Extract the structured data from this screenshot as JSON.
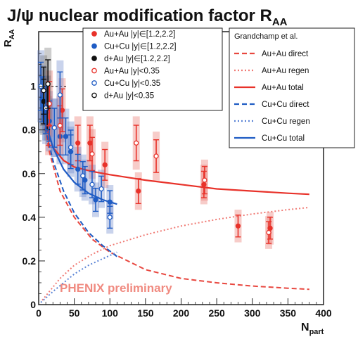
{
  "chart_data": {
    "type": "scatter",
    "title": "J/ψ nuclear modification factor R",
    "title_sub": "AA",
    "ylabel": "R",
    "ylabel_sub": "AA",
    "xlabel": "N",
    "xlabel_sub": "part",
    "xlim": [
      0,
      400
    ],
    "ylim": [
      0,
      1.25
    ],
    "xticks": [
      "0",
      "50",
      "100",
      "150",
      "200",
      "250",
      "300",
      "350",
      "400"
    ],
    "yticks": [
      "0",
      "0.2",
      "0.4",
      "0.6",
      "0.8",
      "1"
    ],
    "watermark": "PHENIX preliminary",
    "legend_position": "top-center",
    "data_series": [
      {
        "name": "Au+Au |y|∈[1.2,2.2]",
        "color": "#e8322a",
        "marker": "filled-circle",
        "points": [
          {
            "x": 14,
            "y": 0.82
          },
          {
            "x": 33,
            "y": 0.89
          },
          {
            "x": 55,
            "y": 0.74
          },
          {
            "x": 72,
            "y": 0.74
          },
          {
            "x": 93,
            "y": 0.64
          },
          {
            "x": 140,
            "y": 0.52
          },
          {
            "x": 232,
            "y": 0.55
          },
          {
            "x": 280,
            "y": 0.36
          },
          {
            "x": 325,
            "y": 0.35
          }
        ]
      },
      {
        "name": "Cu+Cu |y|∈[1.2,2.2]",
        "color": "#1f5cc4",
        "marker": "filled-circle",
        "points": [
          {
            "x": 5,
            "y": 0.94
          },
          {
            "x": 10,
            "y": 0.88
          },
          {
            "x": 15,
            "y": 0.84
          },
          {
            "x": 22,
            "y": 0.81
          },
          {
            "x": 30,
            "y": 0.77
          },
          {
            "x": 38,
            "y": 0.77
          },
          {
            "x": 45,
            "y": 0.7
          },
          {
            "x": 55,
            "y": 0.62
          },
          {
            "x": 65,
            "y": 0.57
          },
          {
            "x": 80,
            "y": 0.48
          },
          {
            "x": 100,
            "y": 0.47
          }
        ]
      },
      {
        "name": "d+Au |y|∈[1.2,2.2]",
        "color": "#111111",
        "marker": "filled-circle",
        "points": [
          {
            "x": 7,
            "y": 0.93
          },
          {
            "x": 12,
            "y": 0.9
          }
        ]
      },
      {
        "name": "Au+Au |y|<0.35",
        "color": "#e8322a",
        "marker": "open-circle",
        "points": [
          {
            "x": 15,
            "y": 0.92
          },
          {
            "x": 30,
            "y": 0.82
          },
          {
            "x": 75,
            "y": 0.69
          },
          {
            "x": 137,
            "y": 0.74
          },
          {
            "x": 165,
            "y": 0.68
          },
          {
            "x": 233,
            "y": 0.57
          },
          {
            "x": 323,
            "y": 0.33
          }
        ]
      },
      {
        "name": "Cu+Cu |y|<0.35",
        "color": "#1f5cc4",
        "marker": "open-circle",
        "points": [
          {
            "x": 3,
            "y": 1.0
          },
          {
            "x": 10,
            "y": 0.9
          },
          {
            "x": 22,
            "y": 0.81
          },
          {
            "x": 30,
            "y": 0.96
          },
          {
            "x": 45,
            "y": 0.72
          },
          {
            "x": 62,
            "y": 0.59
          },
          {
            "x": 75,
            "y": 0.55
          },
          {
            "x": 88,
            "y": 0.53
          },
          {
            "x": 100,
            "y": 0.4
          }
        ]
      },
      {
        "name": "d+Au |y|<0.35",
        "color": "#111111",
        "marker": "open-circle",
        "points": [
          {
            "x": 7,
            "y": 0.98
          },
          {
            "x": 13,
            "y": 1.01
          }
        ]
      }
    ],
    "model_title": "Grandchamp et al.",
    "model_curves": [
      {
        "name": "Au+Au direct",
        "color": "#e8473f",
        "style": "dashed",
        "x": [
          5,
          15,
          30,
          50,
          75,
          100,
          150,
          200,
          250,
          300,
          350,
          380
        ],
        "y": [
          0.88,
          0.7,
          0.52,
          0.4,
          0.3,
          0.24,
          0.16,
          0.12,
          0.1,
          0.085,
          0.075,
          0.07
        ]
      },
      {
        "name": "Au+Au regen",
        "color": "#f07a74",
        "style": "dotted",
        "x": [
          5,
          15,
          30,
          50,
          75,
          100,
          150,
          200,
          250,
          300,
          350,
          380
        ],
        "y": [
          0.02,
          0.06,
          0.12,
          0.18,
          0.23,
          0.27,
          0.32,
          0.36,
          0.39,
          0.415,
          0.435,
          0.445
        ]
      },
      {
        "name": "Au+Au total",
        "color": "#e8322a",
        "style": "solid",
        "x": [
          3,
          10,
          20,
          35,
          50,
          75,
          100,
          150,
          200,
          250,
          300,
          350,
          380
        ],
        "y": [
          0.98,
          0.82,
          0.72,
          0.66,
          0.63,
          0.61,
          0.595,
          0.57,
          0.55,
          0.53,
          0.52,
          0.51,
          0.505
        ]
      },
      {
        "name": "Cu+Cu direct",
        "color": "#1f5cc4",
        "style": "dashed",
        "x": [
          3,
          10,
          20,
          35,
          50,
          70,
          90,
          110
        ],
        "y": [
          0.95,
          0.8,
          0.66,
          0.52,
          0.42,
          0.33,
          0.27,
          0.22
        ]
      },
      {
        "name": "Cu+Cu regen",
        "color": "#5b84d6",
        "style": "dotted",
        "x": [
          3,
          10,
          20,
          35,
          50,
          70,
          90,
          110
        ],
        "y": [
          0.01,
          0.03,
          0.06,
          0.1,
          0.14,
          0.18,
          0.21,
          0.24
        ]
      },
      {
        "name": "Cu+Cu total",
        "color": "#1f5cc4",
        "style": "solid",
        "x": [
          3,
          10,
          20,
          35,
          50,
          70,
          90,
          110
        ],
        "y": [
          0.96,
          0.83,
          0.72,
          0.62,
          0.56,
          0.51,
          0.48,
          0.46
        ]
      }
    ]
  }
}
